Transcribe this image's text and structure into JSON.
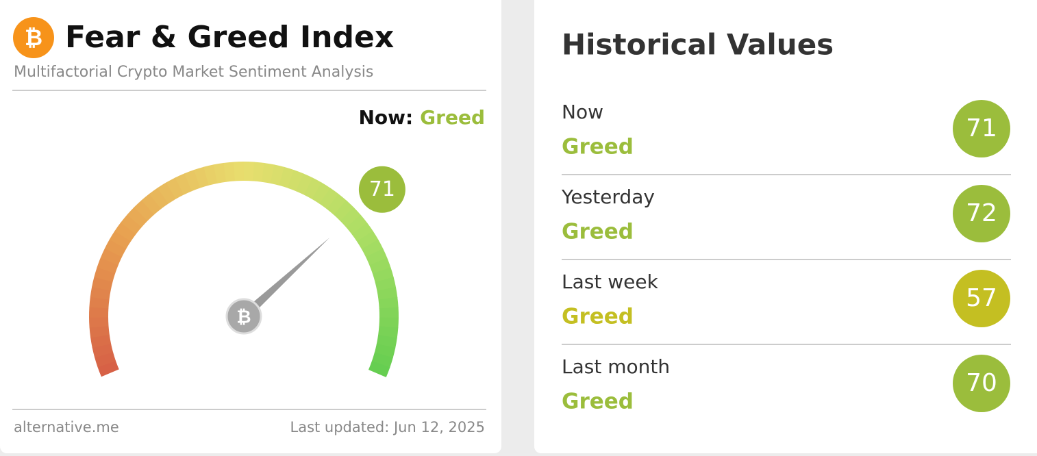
{
  "left": {
    "title": "Fear & Greed Index",
    "subtitle": "Multifactorial Crypto Market Sentiment Analysis",
    "now_label": "Now:",
    "now_status": "Greed",
    "status_color": "#9bbd3c",
    "gauge": {
      "value": 71,
      "scale": [
        0,
        100
      ],
      "color": "#9bbd3c"
    },
    "source": "alternative.me",
    "updated": "Last updated: Jun 12, 2025"
  },
  "right": {
    "title": "Historical Values",
    "rows": [
      {
        "label": "Now",
        "status": "Greed",
        "value": 71,
        "color": "#9bbd3c"
      },
      {
        "label": "Yesterday",
        "status": "Greed",
        "value": 72,
        "color": "#9bbd3c"
      },
      {
        "label": "Last week",
        "status": "Greed",
        "value": 57,
        "color": "#c4bf22"
      },
      {
        "label": "Last month",
        "status": "Greed",
        "value": 70,
        "color": "#9bbd3c"
      }
    ]
  }
}
